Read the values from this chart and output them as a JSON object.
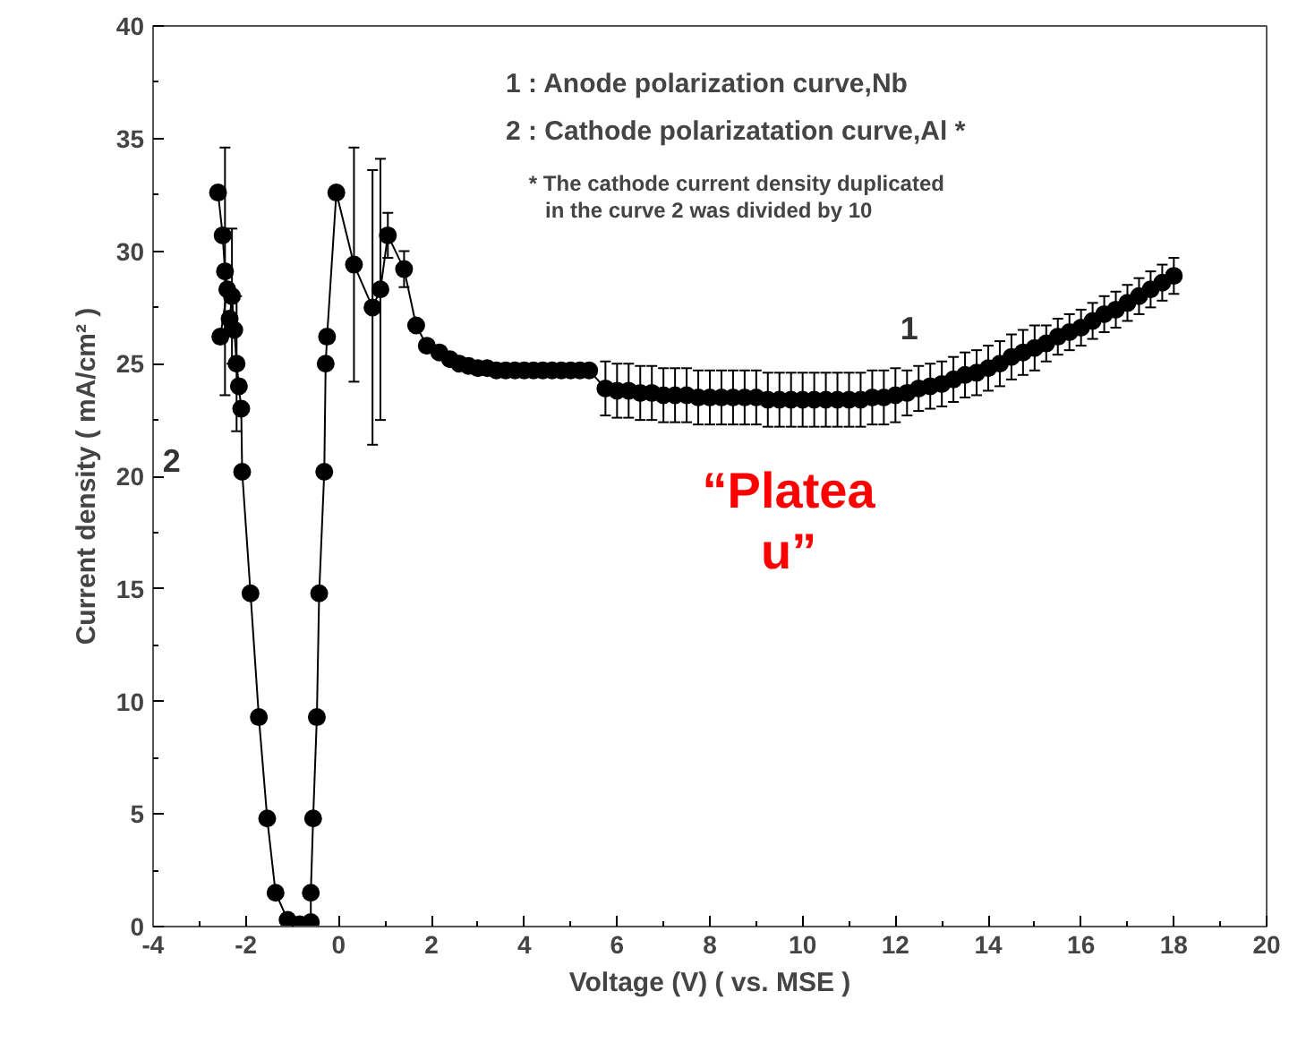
{
  "chart_data": {
    "type": "line",
    "xlabel": "Voltage (V) ( vs. MSE )",
    "ylabel": "Current density ( mA/cm² )",
    "xlim": [
      -4,
      20
    ],
    "ylim": [
      0,
      40
    ],
    "xticks": [
      -4,
      -2,
      0,
      2,
      4,
      6,
      8,
      10,
      12,
      14,
      16,
      18,
      20
    ],
    "yticks": [
      0,
      5,
      10,
      15,
      20,
      25,
      30,
      35,
      40
    ],
    "grid": false,
    "marker": "circle",
    "line_style": "solid",
    "annotations": [
      "1 : Anode polarization curve,Nb",
      "2 : Cathode polarizatation curve,Al *",
      "* The cathode current density duplicated\nin the curve 2 was divided by 10",
      "1",
      "2",
      "“Platea\nu”"
    ],
    "series": [
      {
        "color": "#000000",
        "x": [
          -2.6,
          -2.5,
          -2.45,
          -2.4,
          -2.55,
          -2.35,
          -2.3,
          -2.25,
          -2.2,
          -2.15,
          -2.1,
          -2.08,
          -1.9,
          -1.72,
          -1.54,
          -1.36,
          -1.1,
          -0.84
        ],
        "values": [
          32.6,
          30.7,
          29.1,
          28.3,
          26.2,
          27.0,
          28.0,
          26.5,
          25.0,
          24.0,
          23.0,
          20.2,
          14.8,
          9.3,
          4.8,
          1.5,
          0.3,
          0.1
        ],
        "errors": [
          null,
          null,
          5.5,
          null,
          null,
          null,
          3,
          null,
          3,
          null,
          null,
          null,
          null,
          null,
          null,
          null,
          null,
          null
        ]
      },
      {
        "color": "#000000",
        "x": [
          -0.6,
          -0.6,
          -0.55,
          -0.47,
          -0.42,
          -0.31,
          -0.28,
          -0.25,
          -0.05,
          0.33,
          0.73,
          0.9,
          1.06,
          1.41,
          1.67,
          1.9,
          2.17,
          2.4,
          2.6,
          2.8,
          3.0,
          3.2,
          3.4,
          3.6,
          3.8,
          4.0,
          4.2,
          4.4,
          4.6,
          4.8,
          5.0,
          5.2,
          5.4,
          5.75,
          6.0,
          6.25,
          6.5,
          6.75,
          7.0,
          7.25,
          7.5,
          7.75,
          8.0,
          8.25,
          8.5,
          8.75,
          9.0,
          9.25,
          9.5,
          9.75,
          10.0,
          10.25,
          10.5,
          10.75,
          11.0,
          11.25,
          11.5,
          11.75,
          12.0,
          12.25,
          12.5,
          12.75,
          13.0,
          13.25,
          13.5,
          13.75,
          14.0,
          14.25,
          14.5,
          14.75,
          15.0,
          15.25,
          15.5,
          15.75,
          16.0,
          16.25,
          16.5,
          16.75,
          17.0,
          17.25,
          17.5,
          17.75,
          18.0
        ],
        "values": [
          0.2,
          1.5,
          4.8,
          9.3,
          14.8,
          20.2,
          25.0,
          26.2,
          32.6,
          29.4,
          27.5,
          28.3,
          30.7,
          29.2,
          26.7,
          25.8,
          25.5,
          25.2,
          25.0,
          24.9,
          24.8,
          24.8,
          24.7,
          24.7,
          24.7,
          24.7,
          24.7,
          24.7,
          24.7,
          24.7,
          24.7,
          24.7,
          24.7,
          23.9,
          23.8,
          23.8,
          23.7,
          23.7,
          23.6,
          23.6,
          23.6,
          23.5,
          23.5,
          23.5,
          23.5,
          23.5,
          23.5,
          23.4,
          23.4,
          23.4,
          23.4,
          23.4,
          23.4,
          23.4,
          23.4,
          23.4,
          23.5,
          23.5,
          23.6,
          23.7,
          23.9,
          24.0,
          24.1,
          24.3,
          24.5,
          24.6,
          24.8,
          25.0,
          25.3,
          25.5,
          25.7,
          25.9,
          26.2,
          26.4,
          26.6,
          26.9,
          27.2,
          27.4,
          27.7,
          28.0,
          28.3,
          28.6,
          28.9
        ],
        "errors": [
          null,
          null,
          null,
          null,
          null,
          null,
          null,
          null,
          null,
          5.2,
          6.1,
          5.8,
          1.0,
          0.8,
          null,
          null,
          null,
          null,
          null,
          null,
          null,
          null,
          null,
          null,
          null,
          null,
          null,
          null,
          null,
          null,
          null,
          null,
          null,
          1.2,
          1.2,
          1.2,
          1.2,
          1.2,
          1.2,
          1.2,
          1.2,
          1.2,
          1.2,
          1.2,
          1.2,
          1.2,
          1.2,
          1.2,
          1.2,
          1.2,
          1.2,
          1.2,
          1.2,
          1.2,
          1.2,
          1.2,
          1.2,
          1.2,
          1.2,
          1.0,
          1.0,
          1.0,
          1.0,
          1.0,
          1.0,
          1.0,
          1.0,
          1.0,
          1.0,
          1.0,
          1.0,
          0.8,
          0.8,
          0.8,
          0.8,
          0.8,
          0.8,
          0.8,
          0.8,
          0.8,
          0.8,
          0.8,
          0.8
        ]
      }
    ]
  }
}
